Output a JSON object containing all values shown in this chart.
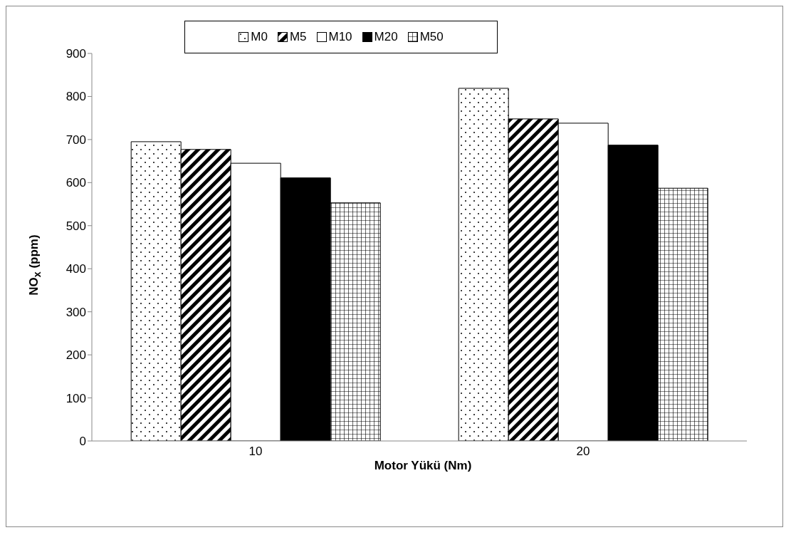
{
  "chart_data": {
    "type": "bar",
    "xlabel": "Motor Yükü (Nm)",
    "ylabel": "NO$_{x}$ (ppm)",
    "categories": [
      "10",
      "20"
    ],
    "series": [
      {
        "name": "M0",
        "color": "#000000",
        "values": [
          695,
          819
        ]
      },
      {
        "name": "M5",
        "color": "#000000",
        "values": [
          677,
          748
        ]
      },
      {
        "name": "M10",
        "color": "#000000",
        "values": [
          645,
          738
        ]
      },
      {
        "name": "M20",
        "color": "#000000",
        "values": [
          611,
          687
        ]
      },
      {
        "name": "M50",
        "color": "#000000",
        "values": [
          553,
          587
        ]
      }
    ],
    "ylim": [
      0,
      900
    ],
    "yticks": [
      0,
      100,
      200,
      300,
      400,
      500,
      600,
      700,
      800,
      900
    ],
    "grid": false,
    "legend": "top"
  }
}
